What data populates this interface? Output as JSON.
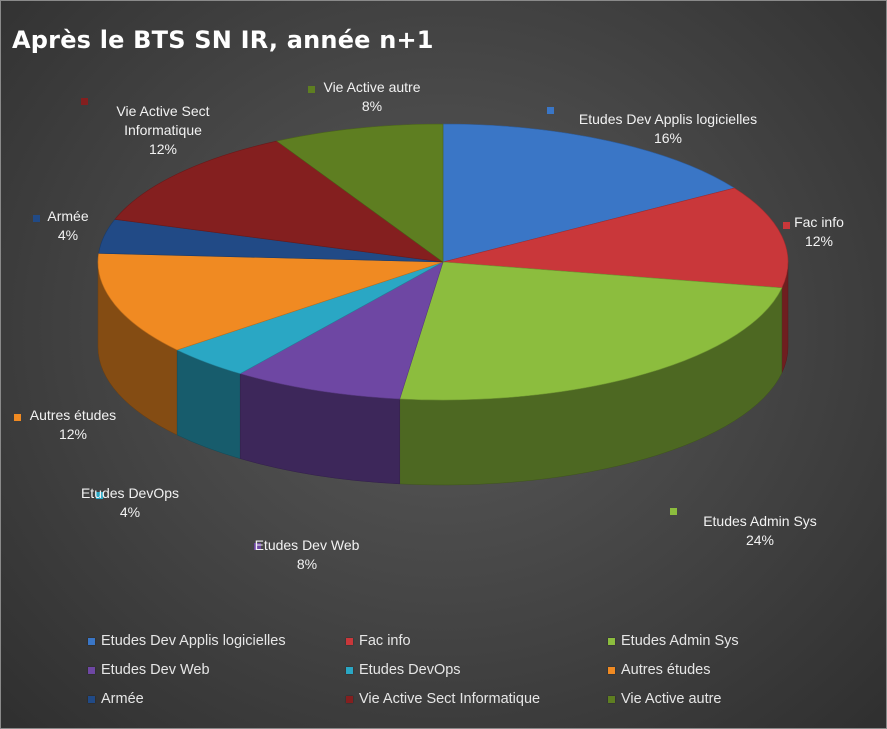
{
  "chart_data": {
    "type": "pie",
    "title": "Après le BTS SN IR, année n+1",
    "series": [
      {
        "name": "Etudes Dev Applis logicielles",
        "value": 16,
        "label": "16%",
        "color": "#3a76c6"
      },
      {
        "name": "Fac info",
        "value": 12,
        "label": "12%",
        "color": "#c9373a"
      },
      {
        "name": "Etudes Admin Sys",
        "value": 24,
        "label": "24%",
        "color": "#8cbd3e"
      },
      {
        "name": "Etudes Dev Web",
        "value": 8,
        "label": "8%",
        "color": "#6e47a3"
      },
      {
        "name": "Etudes DevOps",
        "value": 4,
        "label": "4%",
        "color": "#2aa7c4"
      },
      {
        "name": "Autres études",
        "value": 12,
        "label": "12%",
        "color": "#f08a22"
      },
      {
        "name": "Armée",
        "value": 4,
        "label": "4%",
        "color": "#214a86"
      },
      {
        "name": "Vie Active Sect Informatique",
        "value": 12,
        "label": "12%",
        "color": "#841f1f"
      },
      {
        "name": "Vie Active autre",
        "value": 8,
        "label": "8%",
        "color": "#5e7e21"
      }
    ],
    "legend_position": "bottom"
  }
}
